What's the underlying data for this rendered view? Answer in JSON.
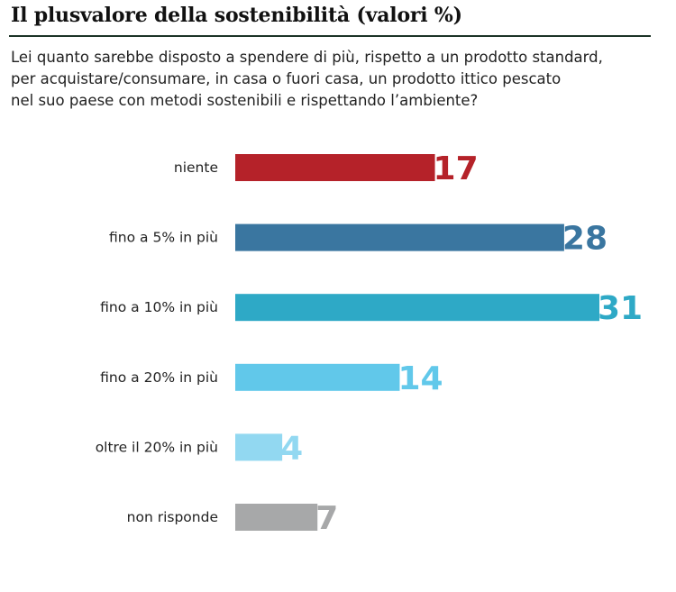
{
  "title": "Il plusvalore della sostenibilità (valori %)",
  "subtitle": [
    "Lei quanto sarebbe disposto a spendere di più, rispetto a un prodotto standard,",
    "per acquistare/consumare, in casa o fuori casa, un prodotto ittico pescato",
    "nel suo paese con metodi sostenibili e rispettando l’ambiente?"
  ],
  "chart_data": {
    "type": "bar",
    "orientation": "horizontal",
    "title": "Il plusvalore della sostenibilità (valori %)",
    "categories": [
      "niente",
      "fino a 5% in più",
      "fino a 10% in più",
      "fino a 20% in più",
      "oltre il 20% in più",
      "non risponde"
    ],
    "values": [
      17,
      28,
      31,
      14,
      4,
      7
    ],
    "colors": [
      "#b52229",
      "#3a76a0",
      "#2ea9c6",
      "#61c8ea",
      "#92d8f1",
      "#a7a8a9"
    ],
    "xlabel": "",
    "ylabel": "",
    "xlim": [
      0,
      31
    ],
    "grid": false,
    "legend": "none"
  }
}
